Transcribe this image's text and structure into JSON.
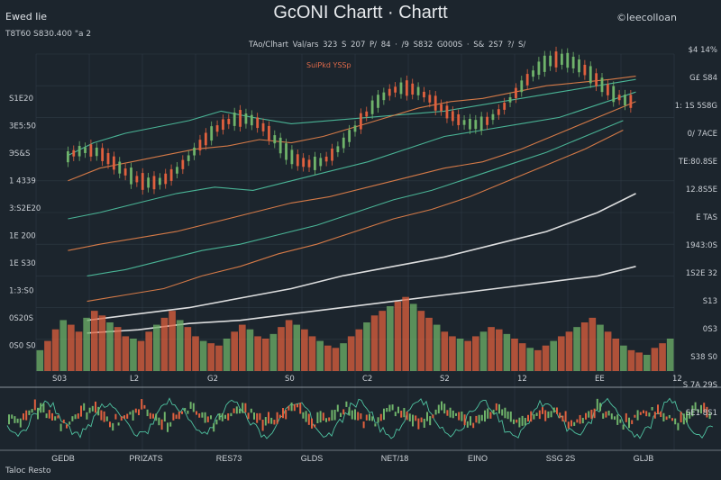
{
  "header": {
    "title": "GcONI Chartt · Chartt",
    "brand": "©leecolloan",
    "top_left_label": "Ewed lie",
    "top_left_sub": "T8T60 S830.400 \"a 2",
    "legend_text": "TAo/Clhart Val/ars 323    S 207 P/ 84    ·  /9 S832 G000S    ·  S& 2S7 ?/ S/",
    "legend_red": "SuiPkd YSSp"
  },
  "footer": {
    "text": "Taloc Resto"
  },
  "colors": {
    "background": "#1c252d",
    "grid": "#2e3a44",
    "up": "#6fb36a",
    "down": "#e0603e",
    "line_orange": "#e8834a",
    "line_teal": "#4fc3a1",
    "line_white": "#f2f2f2"
  },
  "chart_data": {
    "type": "line",
    "title": "GcONI Chartt · Chartt",
    "y_tick_labels_left": [
      "S1E20",
      "3E5:50",
      "ЭS&S",
      "1 4339",
      "3:S2E20",
      "1E 200",
      "1E S30",
      "1:3:S0",
      "0S20S",
      "0S0 S0"
    ],
    "y_tick_labels_right": [
      "$4 14%",
      "G£ S84",
      "1: 1S 5S8G",
      "0/ 7ACE",
      "TE:80.8SE",
      "12.8S5E",
      "E TAS",
      "1943:0S",
      "1S2E 32",
      "S13",
      "0S3",
      "S38 S0",
      "S 7A 29S",
      "SE1 8S1"
    ],
    "x_tick_labels_bottom": [
      "GEDB",
      "PRIZATS",
      "RES73",
      "GLDS",
      "NET/18",
      "EINO",
      "SSG 2S",
      "GLJB"
    ],
    "x_tick_labels_volume": [
      "S03",
      "L2",
      "G2",
      "S0",
      "C2",
      "S2",
      "12",
      "EE",
      "12"
    ],
    "x_range": [
      0,
      100
    ],
    "y_range": [
      0,
      100
    ],
    "series": [
      {
        "x": [
          5,
          9,
          14,
          19,
          24,
          29,
          34,
          40,
          46,
          52,
          58,
          64,
          70,
          76,
          82,
          88,
          94
        ],
        "y": [
          68,
          72,
          75,
          77,
          79,
          82,
          80,
          78,
          79,
          80,
          81,
          82,
          84,
          86,
          88,
          90,
          92
        ]
      },
      {
        "x": [
          5,
          10,
          15,
          20,
          25,
          30,
          35,
          40,
          45,
          50,
          55,
          60,
          65,
          70,
          75,
          80,
          85,
          90,
          94
        ],
        "y": [
          60,
          64,
          66,
          68,
          70,
          71,
          73,
          72,
          74,
          77,
          80,
          83,
          85,
          86,
          88,
          90,
          91,
          92,
          93
        ]
      },
      {
        "x": [
          5,
          10,
          16,
          22,
          28,
          34,
          40,
          46,
          52,
          58,
          64,
          70,
          76,
          82,
          88,
          94
        ],
        "y": [
          48,
          50,
          53,
          56,
          58,
          57,
          60,
          63,
          66,
          70,
          74,
          76,
          78,
          80,
          84,
          88
        ]
      },
      {
        "x": [
          5,
          10,
          16,
          22,
          28,
          34,
          40,
          46,
          52,
          58,
          64,
          70,
          76,
          82,
          88,
          94
        ],
        "y": [
          38,
          40,
          42,
          44,
          47,
          50,
          53,
          55,
          58,
          61,
          64,
          66,
          70,
          75,
          80,
          85
        ]
      },
      {
        "x": [
          8,
          14,
          20,
          26,
          32,
          38,
          44,
          50,
          56,
          62,
          68,
          74,
          80,
          86,
          92
        ],
        "y": [
          30,
          32,
          35,
          38,
          40,
          43,
          46,
          50,
          54,
          57,
          61,
          65,
          69,
          74,
          79
        ]
      },
      {
        "x": [
          8,
          14,
          20,
          26,
          32,
          38,
          44,
          50,
          56,
          62,
          68,
          74,
          80,
          86,
          92
        ],
        "y": [
          22,
          24,
          26,
          30,
          33,
          37,
          40,
          44,
          48,
          51,
          55,
          60,
          65,
          70,
          76
        ]
      },
      {
        "x": [
          8,
          16,
          24,
          32,
          40,
          48,
          56,
          64,
          72,
          80,
          88,
          94
        ],
        "y": [
          16,
          18,
          20,
          23,
          26,
          30,
          33,
          36,
          40,
          44,
          50,
          56
        ]
      },
      {
        "x": [
          8,
          16,
          24,
          32,
          40,
          48,
          56,
          64,
          72,
          80,
          88,
          94
        ],
        "y": [
          12,
          13,
          15,
          16,
          18,
          20,
          22,
          24,
          26,
          28,
          30,
          33
        ]
      }
    ],
    "volume": {
      "values": [
        18,
        26,
        36,
        44,
        40,
        34,
        46,
        52,
        48,
        42,
        38,
        30,
        28,
        26,
        34,
        40,
        46,
        52,
        44,
        38,
        30,
        26,
        24,
        22,
        28,
        34,
        40,
        36,
        30,
        28,
        32,
        38,
        44,
        40,
        36,
        30,
        26,
        22,
        20,
        24,
        30,
        36,
        42,
        48,
        52,
        56,
        60,
        64,
        58,
        52,
        46,
        40,
        34,
        30,
        28,
        26,
        30,
        34,
        38,
        36,
        32,
        28,
        24,
        20,
        18,
        22,
        26,
        30,
        34,
        38,
        42,
        46,
        40,
        34,
        28,
        22,
        18,
        16,
        14,
        20,
        24,
        28
      ],
      "ylim": [
        0,
        70
      ]
    },
    "grid": true,
    "legend": "top-center"
  }
}
